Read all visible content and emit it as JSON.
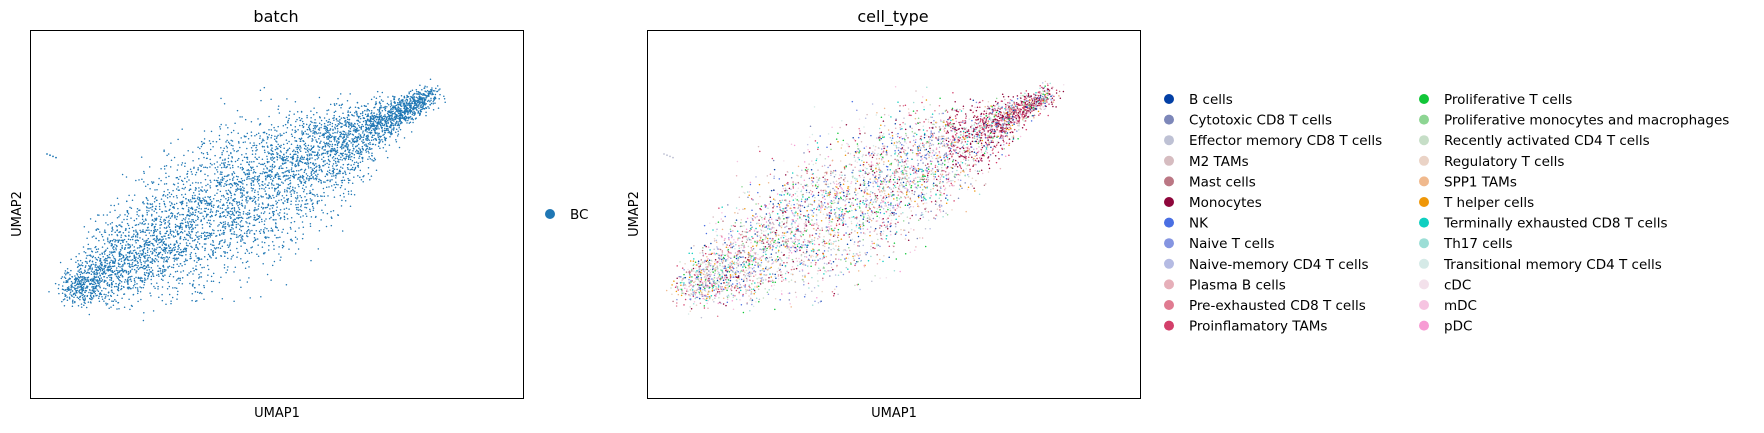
{
  "chart_data": [
    {
      "type": "scatter",
      "title": "batch",
      "xlabel": "UMAP1",
      "ylabel": "UMAP2",
      "grid": false,
      "xticks": [],
      "yticks": [],
      "legend_position": "right",
      "series": [
        {
          "name": "BC",
          "color": "#1f77b4"
        }
      ]
    },
    {
      "type": "scatter",
      "title": "cell_type",
      "xlabel": "UMAP1",
      "ylabel": "UMAP2",
      "grid": false,
      "xticks": [],
      "yticks": [],
      "legend_position": "right",
      "series": [
        {
          "name": "B cells",
          "color": "#023fa5"
        },
        {
          "name": "Cytotoxic CD8 T cells",
          "color": "#7d87b9"
        },
        {
          "name": "Effector memory CD8 T cells",
          "color": "#bec1d4"
        },
        {
          "name": "M2 TAMs",
          "color": "#d6bcc0"
        },
        {
          "name": "Mast cells",
          "color": "#bb7784"
        },
        {
          "name": "Monocytes",
          "color": "#8e063b"
        },
        {
          "name": "NK",
          "color": "#4a6fe3"
        },
        {
          "name": "Naive T cells",
          "color": "#8595e1"
        },
        {
          "name": "Naive-memory CD4 T cells",
          "color": "#b5bbe3"
        },
        {
          "name": "Plasma B cells",
          "color": "#e6afb9"
        },
        {
          "name": "Pre-exhausted CD8 T cells",
          "color": "#e07b91"
        },
        {
          "name": "Proinflamatory TAMs",
          "color": "#d33f6a"
        },
        {
          "name": "Proliferative T cells",
          "color": "#11c638"
        },
        {
          "name": "Proliferative monocytes and macrophages",
          "color": "#8dd593"
        },
        {
          "name": "Recently activated CD4 T cells",
          "color": "#c6dec7"
        },
        {
          "name": "Regulatory T cells",
          "color": "#ead3c6"
        },
        {
          "name": "SPP1 TAMs",
          "color": "#f0b98d"
        },
        {
          "name": "T helper cells",
          "color": "#ef9708"
        },
        {
          "name": "Terminally exhausted CD8 T cells",
          "color": "#0fcfc0"
        },
        {
          "name": "Th17 cells",
          "color": "#9cded6"
        },
        {
          "name": "Transitional memory CD4 T cells",
          "color": "#d5eae7"
        },
        {
          "name": "cDC",
          "color": "#f3e1eb"
        },
        {
          "name": "mDC",
          "color": "#f6c4e1"
        },
        {
          "name": "pDC",
          "color": "#f79cd4"
        }
      ]
    }
  ]
}
